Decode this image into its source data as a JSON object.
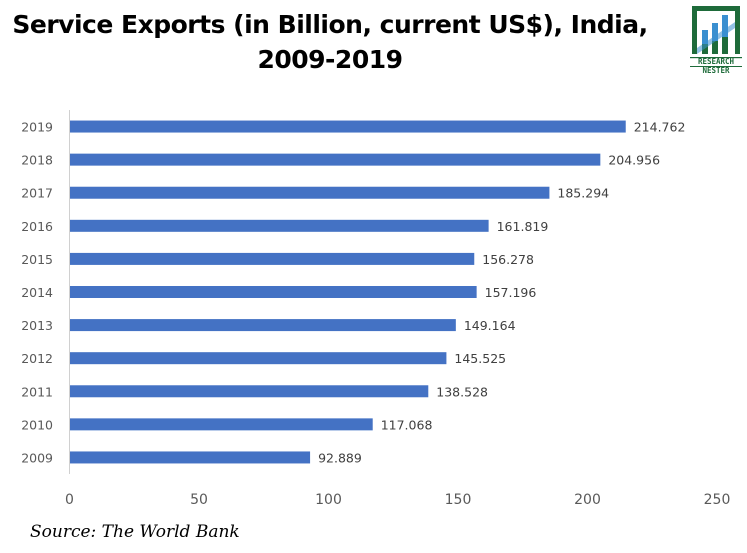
{
  "header": {
    "title_line1": "Service Exports (in Billion, current US$), India,",
    "title_line2": "2009-2019"
  },
  "logo": {
    "icon": "research-nester-logo-icon",
    "line1": "RESEARCH",
    "line2": "NESTER",
    "colors": {
      "green": "#1e6b3a",
      "blue": "#3a8fd0"
    }
  },
  "source": "Source: The World Bank",
  "chart_data": {
    "type": "bar",
    "orientation": "horizontal",
    "title": "Service Exports (in Billion, current US$), India, 2009-2019",
    "xlabel": "",
    "ylabel": "",
    "categories": [
      "2009",
      "2010",
      "2011",
      "2012",
      "2013",
      "2014",
      "2015",
      "2016",
      "2017",
      "2018",
      "2019"
    ],
    "values": [
      92.889,
      117.068,
      138.528,
      145.525,
      149.164,
      157.196,
      156.278,
      161.819,
      185.294,
      204.956,
      214.762
    ],
    "value_labels": [
      "92.889",
      "117.068",
      "138.528",
      "145.525",
      "149.164",
      "157.196",
      "156.278",
      "161.819",
      "185.294",
      "204.956",
      "214.762"
    ],
    "xlim": [
      0,
      250
    ],
    "xticks": [
      0,
      50,
      100,
      150,
      200,
      250
    ],
    "grid": false,
    "legend": "none",
    "bar_color": "#4472c4"
  }
}
